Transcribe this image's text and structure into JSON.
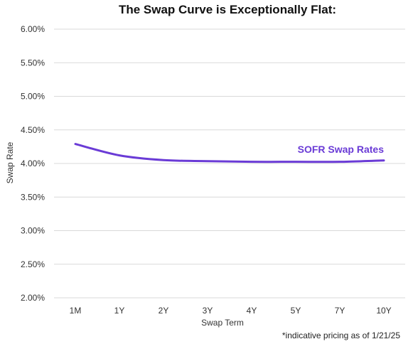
{
  "chart_data": {
    "type": "line",
    "title": "The Swap Curve is Exceptionally Flat:",
    "xlabel": "Swap Term",
    "ylabel": "Swap Rate",
    "categories": [
      "1M",
      "1Y",
      "2Y",
      "3Y",
      "4Y",
      "5Y",
      "7Y",
      "10Y"
    ],
    "series": [
      {
        "name": "SOFR Swap Rates",
        "values": [
          4.29,
          4.12,
          4.05,
          4.035,
          4.025,
          4.025,
          4.025,
          4.045
        ]
      }
    ],
    "ylim": [
      2.0,
      6.0
    ],
    "yticks": [
      {
        "value": 6.0,
        "label": "6.00%"
      },
      {
        "value": 5.5,
        "label": "5.50%"
      },
      {
        "value": 5.0,
        "label": "5.00%"
      },
      {
        "value": 4.5,
        "label": "4.50%"
      },
      {
        "value": 4.0,
        "label": "4.00%"
      },
      {
        "value": 3.5,
        "label": "3.50%"
      },
      {
        "value": 3.0,
        "label": "3.00%"
      },
      {
        "value": 2.5,
        "label": "2.50%"
      },
      {
        "value": 2.0,
        "label": "2.00%"
      }
    ],
    "grid": true,
    "line_color": "#6a3bd6",
    "label_color": "#6a3bd6",
    "footnote": "*indicative pricing as of 1/21/25"
  }
}
